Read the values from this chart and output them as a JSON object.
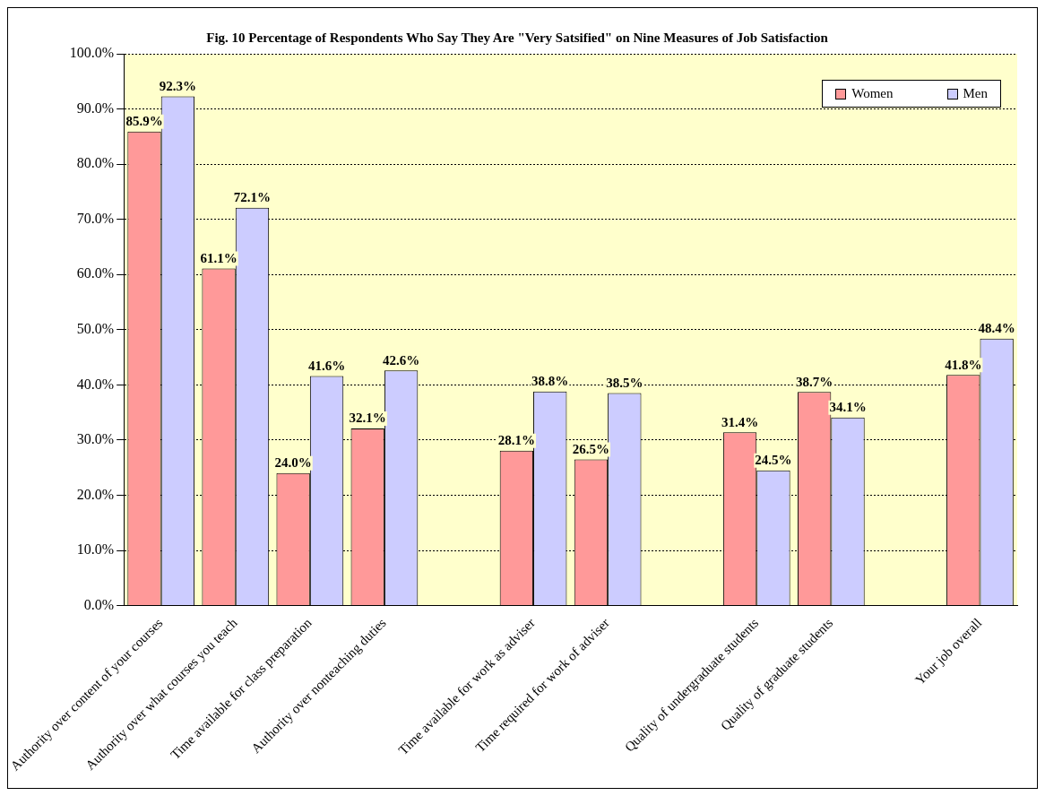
{
  "chart_data": {
    "type": "bar",
    "title": "Fig. 10 Percentage of Respondents Who Say They Are \"Very Satsified\" on Nine Measures of Job Satisfaction",
    "categories": [
      "Authority over content of your courses",
      "Authority over what courses you teach",
      "Time available for class preparation",
      "Authority over nonteaching duties",
      null,
      "Time available for work as adviser",
      "Time required for work of adviser",
      null,
      "Quality of undergraduate students",
      "Quality of graduate students",
      null,
      "Your job overall"
    ],
    "series": [
      {
        "name": "Women",
        "color": "#ff9999",
        "values": [
          85.9,
          61.1,
          24.0,
          32.1,
          null,
          28.1,
          26.5,
          null,
          31.4,
          38.7,
          null,
          41.8
        ],
        "value_labels": [
          "85.9%",
          "61.1%",
          "24.0%",
          "32.1%",
          null,
          "28.1%",
          "26.5%",
          null,
          "31.4%",
          "38.7%",
          null,
          "41.8%"
        ]
      },
      {
        "name": "Men",
        "color": "#ccccff",
        "values": [
          92.3,
          72.1,
          41.6,
          42.6,
          null,
          38.8,
          38.5,
          null,
          24.5,
          34.1,
          null,
          48.4
        ],
        "value_labels": [
          "92.3%",
          "72.1%",
          "41.6%",
          "42.6%",
          null,
          "38.8%",
          "38.5%",
          null,
          "24.5%",
          "34.1%",
          null,
          "48.4%"
        ]
      }
    ],
    "ylim": [
      0,
      100
    ],
    "yticks": [
      {
        "value": 0,
        "label": "0.0%"
      },
      {
        "value": 10,
        "label": "10.0%"
      },
      {
        "value": 20,
        "label": "20.0%"
      },
      {
        "value": 30,
        "label": "30.0%"
      },
      {
        "value": 40,
        "label": "40.0%"
      },
      {
        "value": 50,
        "label": "50.0%"
      },
      {
        "value": 60,
        "label": "60.0%"
      },
      {
        "value": 70,
        "label": "70.0%"
      },
      {
        "value": 80,
        "label": "80.0%"
      },
      {
        "value": 90,
        "label": "90.0%"
      },
      {
        "value": 100,
        "label": "100.0%"
      }
    ],
    "grid": "y",
    "legend": "top right"
  }
}
